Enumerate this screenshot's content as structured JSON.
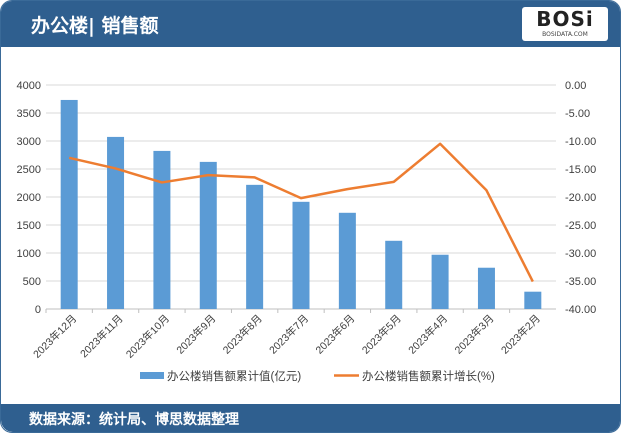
{
  "header": {
    "title": "办公楼| 销售额",
    "logo": "BOSi",
    "logo_sub": "BOSIDATA.COM"
  },
  "footer": {
    "source": "数据来源：统计局、博思数据整理"
  },
  "chart_data": {
    "type": "bar+line",
    "categories": [
      "2023年12月",
      "2023年11月",
      "2023年10月",
      "2023年9月",
      "2023年8月",
      "2023年7月",
      "2023年6月",
      "2023年5月",
      "2023年4月",
      "2023年3月",
      "2023年2月"
    ],
    "series": [
      {
        "name": "办公楼销售额累计值(亿元)",
        "type": "bar",
        "axis": "left",
        "color": "#5b9bd5",
        "values": [
          3733,
          3073,
          2823,
          2627,
          2217,
          1914,
          1718,
          1218,
          969,
          737,
          309
        ]
      },
      {
        "name": "办公楼销售额累计增长(%)",
        "type": "line",
        "axis": "right",
        "color": "#ed7d31",
        "values": [
          -13.0,
          -14.9,
          -17.4,
          -16.1,
          -16.5,
          -20.2,
          -18.6,
          -17.3,
          -10.5,
          -18.8,
          -35.1
        ]
      }
    ],
    "y_left": {
      "range": [
        0,
        4000
      ],
      "ticks": [
        "0",
        "500",
        "1000",
        "1500",
        "2000",
        "2500",
        "3000",
        "3500",
        "4000"
      ]
    },
    "y_right": {
      "range": [
        -40,
        0
      ],
      "ticks": [
        "-40.00",
        "-35.00",
        "-30.00",
        "-25.00",
        "-20.00",
        "-15.00",
        "-10.00",
        "-5.00",
        "0.00"
      ]
    },
    "grid": true,
    "legend": "bottom"
  }
}
